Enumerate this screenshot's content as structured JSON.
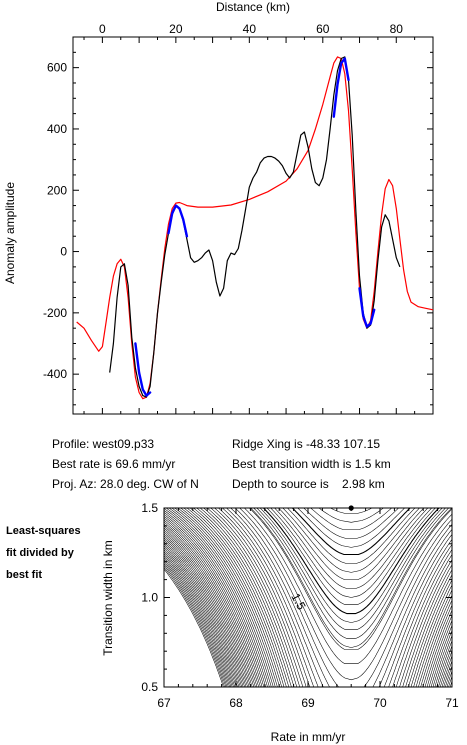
{
  "chart_data": [
    {
      "type": "line",
      "title": "",
      "xlabel": "Distance (km)",
      "ylabel": "Anomaly amplitude",
      "xlim": [
        -8,
        90
      ],
      "ylim": [
        -530,
        700
      ],
      "xticks": [
        0,
        20,
        40,
        60,
        80
      ],
      "yticks": [
        -400,
        -200,
        0,
        200,
        400,
        600
      ],
      "grid": false,
      "legend": "none",
      "series": [
        {
          "color": "#000000",
          "points": [
            [
              2,
              -395
            ],
            [
              3,
              -300
            ],
            [
              4,
              -150
            ],
            [
              5,
              -50
            ],
            [
              6,
              -40
            ],
            [
              7,
              -110
            ],
            [
              8,
              -280
            ],
            [
              9,
              -380
            ],
            [
              10,
              -440
            ],
            [
              11,
              -470
            ],
            [
              12,
              -475
            ],
            [
              13,
              -440
            ],
            [
              14,
              -330
            ],
            [
              15,
              -200
            ],
            [
              16,
              -100
            ],
            [
              17,
              -10
            ],
            [
              18,
              60
            ],
            [
              19,
              120
            ],
            [
              20,
              150
            ],
            [
              21,
              140
            ],
            [
              22,
              100
            ],
            [
              23,
              40
            ],
            [
              24,
              -20
            ],
            [
              25,
              -35
            ],
            [
              26,
              -30
            ],
            [
              27,
              -20
            ],
            [
              28,
              -5
            ],
            [
              29,
              5
            ],
            [
              30,
              -30
            ],
            [
              31,
              -100
            ],
            [
              32,
              -145
            ],
            [
              33,
              -120
            ],
            [
              34,
              -30
            ],
            [
              35,
              -5
            ],
            [
              36,
              -10
            ],
            [
              37,
              10
            ],
            [
              38,
              70
            ],
            [
              39,
              140
            ],
            [
              40,
              210
            ],
            [
              41,
              240
            ],
            [
              42,
              260
            ],
            [
              43,
              290
            ],
            [
              44,
              305
            ],
            [
              45,
              310
            ],
            [
              46,
              310
            ],
            [
              47,
              305
            ],
            [
              48,
              295
            ],
            [
              49,
              280
            ],
            [
              50,
              255
            ],
            [
              51,
              240
            ],
            [
              52,
              260
            ],
            [
              53,
              320
            ],
            [
              54,
              380
            ],
            [
              55,
              390
            ],
            [
              56,
              340
            ],
            [
              57,
              270
            ],
            [
              58,
              225
            ],
            [
              59,
              215
            ],
            [
              60,
              240
            ],
            [
              61,
              300
            ],
            [
              62,
              400
            ],
            [
              63,
              510
            ],
            [
              64,
              590
            ],
            [
              65,
              630
            ],
            [
              66,
              635
            ],
            [
              67,
              560
            ],
            [
              68,
              380
            ],
            [
              69,
              130
            ],
            [
              70,
              -80
            ],
            [
              71,
              -200
            ],
            [
              72,
              -250
            ],
            [
              73,
              -240
            ],
            [
              74,
              -160
            ],
            [
              75,
              -30
            ],
            [
              76,
              80
            ],
            [
              77,
              120
            ],
            [
              78,
              100
            ],
            [
              79,
              40
            ],
            [
              80,
              -20
            ],
            [
              81,
              -50
            ]
          ]
        },
        {
          "color": "#ff0000",
          "points": [
            [
              -7,
              -230
            ],
            [
              -5,
              -250
            ],
            [
              -3,
              -290
            ],
            [
              -1,
              -325
            ],
            [
              0,
              -310
            ],
            [
              1,
              -230
            ],
            [
              2,
              -150
            ],
            [
              3,
              -80
            ],
            [
              4,
              -40
            ],
            [
              5,
              -25
            ],
            [
              6,
              -50
            ],
            [
              7,
              -150
            ],
            [
              8,
              -300
            ],
            [
              9,
              -410
            ],
            [
              10,
              -460
            ],
            [
              11,
              -480
            ],
            [
              12,
              -475
            ],
            [
              13,
              -430
            ],
            [
              14,
              -330
            ],
            [
              15,
              -200
            ],
            [
              16,
              -90
            ],
            [
              17,
              10
            ],
            [
              18,
              90
            ],
            [
              19,
              140
            ],
            [
              20,
              158
            ],
            [
              21,
              160
            ],
            [
              22,
              155
            ],
            [
              23,
              150
            ],
            [
              26,
              145
            ],
            [
              30,
              145
            ],
            [
              35,
              152
            ],
            [
              40,
              170
            ],
            [
              45,
              195
            ],
            [
              50,
              230
            ],
            [
              53,
              270
            ],
            [
              56,
              330
            ],
            [
              58,
              400
            ],
            [
              60,
              480
            ],
            [
              62,
              570
            ],
            [
              63,
              615
            ],
            [
              64,
              635
            ],
            [
              65,
              630
            ],
            [
              66,
              580
            ],
            [
              67,
              460
            ],
            [
              68,
              270
            ],
            [
              69,
              60
            ],
            [
              70,
              -120
            ],
            [
              71,
              -220
            ],
            [
              72,
              -250
            ],
            [
              73,
              -225
            ],
            [
              74,
              -130
            ],
            [
              75,
              0
            ],
            [
              76,
              120
            ],
            [
              77,
              205
            ],
            [
              78,
              235
            ],
            [
              79,
              215
            ],
            [
              80,
              140
            ],
            [
              81,
              40
            ],
            [
              82,
              -60
            ],
            [
              83,
              -130
            ],
            [
              84,
              -165
            ],
            [
              86,
              -180
            ],
            [
              88,
              -185
            ],
            [
              90,
              -190
            ]
          ]
        },
        {
          "color": "#0000ff",
          "segments": [
            [
              [
                9,
                -300
              ],
              [
                10,
                -395
              ],
              [
                11,
                -450
              ],
              [
                12,
                -470
              ],
              [
                13,
                -460
              ]
            ],
            [
              [
                18,
                60
              ],
              [
                19,
                125
              ],
              [
                20,
                150
              ],
              [
                21,
                140
              ],
              [
                22,
                105
              ],
              [
                23,
                50
              ]
            ],
            [
              [
                63,
                440
              ],
              [
                64,
                545
              ],
              [
                65,
                615
              ],
              [
                66,
                630
              ],
              [
                67,
                560
              ]
            ],
            [
              [
                70,
                -120
              ],
              [
                71,
                -210
              ],
              [
                72,
                -245
              ],
              [
                73,
                -235
              ],
              [
                74,
                -190
              ]
            ]
          ]
        }
      ]
    },
    {
      "type": "contour",
      "title": "",
      "xlabel": "Rate in mm/yr",
      "ylabel": "Transition width in km",
      "xlim": [
        67,
        71
      ],
      "ylim": [
        0.5,
        1.5
      ],
      "xticks": [
        67,
        68,
        69,
        70,
        71
      ],
      "yticks": [
        0.5,
        1.0,
        1.5
      ],
      "grid": false,
      "legend": "none",
      "contour_label": "1.5",
      "best_fit_point": [
        69.6,
        1.5
      ]
    }
  ],
  "info": {
    "profile": "Profile: west09.p33",
    "best_rate": "Best rate is 69.6 mm/yr",
    "proj_az": "Proj. Az: 28.0 deg. CW of N",
    "ridge_xing": "Ridge Xing is -48.33 107.15",
    "best_width": "Best transition width is 1.5 km",
    "depth": "Depth to source is    2.98 km"
  },
  "side_note": {
    "line1": "Least-squares",
    "line2": "fit divided by",
    "line3": "best fit"
  },
  "tick_labels": {
    "top_x": [
      "0",
      "20",
      "40",
      "60",
      "80"
    ],
    "top_y": [
      "600",
      "400",
      "200",
      "0",
      "-200",
      "-400"
    ],
    "bottom_x": [
      "67",
      "68",
      "69",
      "70",
      "71"
    ],
    "bottom_y": [
      "1.5",
      "1.0",
      "0.5"
    ]
  }
}
